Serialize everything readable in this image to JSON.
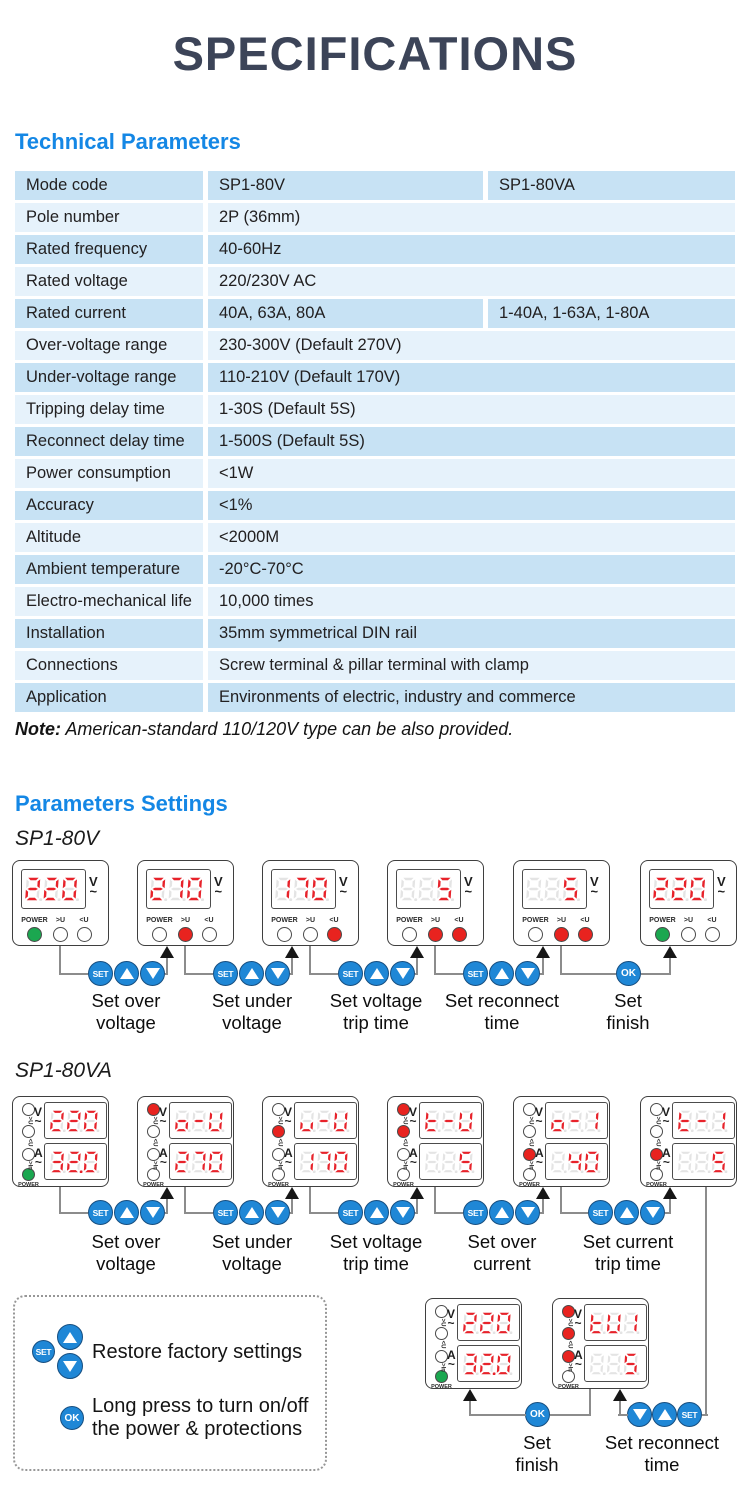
{
  "title": "SPECIFICATIONS",
  "technical": {
    "heading": "Technical Parameters",
    "rows": [
      {
        "label": "Mode code",
        "value": "SP1-80V",
        "value2": "SP1-80VA"
      },
      {
        "label": "Pole number",
        "value": "2P (36mm)"
      },
      {
        "label": "Rated frequency",
        "value": "40-60Hz"
      },
      {
        "label": "Rated voltage",
        "value": "220/230V AC"
      },
      {
        "label": "Rated current",
        "value": "40A, 63A, 80A",
        "value2": "1-40A, 1-63A, 1-80A"
      },
      {
        "label": "Over-voltage range",
        "value": "230-300V (Default 270V)"
      },
      {
        "label": "Under-voltage range",
        "value": "110-210V (Default 170V)"
      },
      {
        "label": "Tripping delay time",
        "value": "1-30S (Default 5S)"
      },
      {
        "label": "Reconnect delay time",
        "value": "1-500S (Default 5S)"
      },
      {
        "label": "Power consumption",
        "value": "<1W"
      },
      {
        "label": "Accuracy",
        "value": "<1%"
      },
      {
        "label": "Altitude",
        "value": "<2000M"
      },
      {
        "label": "Ambient temperature",
        "value": "-20°C-70°C"
      },
      {
        "label": "Electro-mechanical life",
        "value": "10,000 times"
      },
      {
        "label": "Installation",
        "value": "35mm symmetrical DIN rail"
      },
      {
        "label": "Connections",
        "value": "Screw terminal & pillar terminal with clamp"
      },
      {
        "label": "Application",
        "value": "Environments of electric, industry and commerce"
      }
    ],
    "note_label": "Note:",
    "note_text": " American-standard 110/120V type can be also provided."
  },
  "settings": {
    "heading": "Parameters Settings",
    "button_labels": {
      "set": "SET",
      "ok": "OK"
    },
    "sp1_80v": {
      "model": "SP1-80V",
      "indicator_labels": [
        "POWER",
        ">U",
        "<U"
      ],
      "unit": {
        "symbol": "V",
        "ac": "~"
      },
      "devices": [
        {
          "display": "220",
          "leds": {
            "power": "green",
            "over_u": "off",
            "under_u": "off"
          }
        },
        {
          "display": "270",
          "leds": {
            "power": "off",
            "over_u": "red",
            "under_u": "off"
          }
        },
        {
          "display": "170",
          "leds": {
            "power": "off",
            "over_u": "off",
            "under_u": "red"
          }
        },
        {
          "display": "  5",
          "leds": {
            "power": "off",
            "over_u": "red",
            "under_u": "red"
          }
        },
        {
          "display": "  5",
          "leds": {
            "power": "off",
            "over_u": "red",
            "under_u": "red"
          }
        },
        {
          "display": "220",
          "leds": {
            "power": "green",
            "over_u": "off",
            "under_u": "off"
          }
        }
      ],
      "steps": [
        {
          "buttons": [
            "SET",
            "UP",
            "DOWN"
          ],
          "label": "Set over\nvoltage"
        },
        {
          "buttons": [
            "SET",
            "UP",
            "DOWN"
          ],
          "label": "Set under\nvoltage"
        },
        {
          "buttons": [
            "SET",
            "UP",
            "DOWN"
          ],
          "label": "Set voltage\ntrip time"
        },
        {
          "buttons": [
            "SET",
            "UP",
            "DOWN"
          ],
          "label": "Set reconnect\ntime"
        },
        {
          "buttons": [
            "OK"
          ],
          "label": "Set\nfinish"
        }
      ]
    },
    "sp1_80va": {
      "model": "SP1-80VA",
      "indicator_labels": [
        ">U",
        "<U",
        ">In",
        "POWER"
      ],
      "units": {
        "volt": "V",
        "amp": "A",
        "ac": "~"
      },
      "devices": [
        {
          "v": "220",
          "a": "32.0",
          "leds": {
            "over_u": "off",
            "under_u": "off",
            "over_i": "off",
            "power": "green"
          }
        },
        {
          "v": "o-U",
          "a": "270",
          "leds": {
            "over_u": "red",
            "under_u": "off",
            "over_i": "off",
            "power": "off"
          }
        },
        {
          "v": "u-U",
          "a": "170",
          "leds": {
            "over_u": "off",
            "under_u": "red",
            "over_i": "off",
            "power": "off"
          }
        },
        {
          "v": "t-U",
          "a": "  5",
          "leds": {
            "over_u": "red",
            "under_u": "red",
            "over_i": "off",
            "power": "off"
          }
        },
        {
          "v": "o-1",
          "a": " 40",
          "leds": {
            "over_u": "off",
            "under_u": "off",
            "over_i": "red",
            "power": "off"
          }
        },
        {
          "v": "t-1",
          "a": "  5",
          "leds": {
            "over_u": "off",
            "under_u": "off",
            "over_i": "red",
            "power": "off"
          }
        }
      ],
      "steps": [
        {
          "buttons": [
            "SET",
            "UP",
            "DOWN"
          ],
          "label": "Set over\nvoltage"
        },
        {
          "buttons": [
            "SET",
            "UP",
            "DOWN"
          ],
          "label": "Set under\nvoltage"
        },
        {
          "buttons": [
            "SET",
            "UP",
            "DOWN"
          ],
          "label": "Set voltage\ntrip time"
        },
        {
          "buttons": [
            "SET",
            "UP",
            "DOWN"
          ],
          "label": "Set over\ncurrent"
        },
        {
          "buttons": [
            "SET",
            "UP",
            "DOWN"
          ],
          "label": "Set current\ntrip time"
        }
      ]
    },
    "finish_row": {
      "devices": [
        {
          "v": "220",
          "a": "32.0",
          "leds": {
            "over_u": "off",
            "under_u": "off",
            "over_i": "off",
            "power": "green"
          }
        },
        {
          "v": "tU1",
          "a": "  5",
          "leds": {
            "over_u": "red",
            "under_u": "red",
            "over_i": "red",
            "power": "off"
          }
        }
      ],
      "steps": [
        {
          "buttons": [
            "OK"
          ],
          "label": "Set\nfinish"
        },
        {
          "buttons": [
            "DOWN",
            "UP",
            "SET"
          ],
          "label": "Set reconnect\ntime"
        }
      ]
    },
    "legend": [
      {
        "buttons": [
          "SET",
          "UP",
          "DOWN"
        ],
        "text": "Restore factory settings"
      },
      {
        "buttons": [
          "OK"
        ],
        "text": "Long press to turn on/off\nthe power & protections"
      }
    ]
  },
  "colors": {
    "accent_blue": "#1487e5",
    "title": "#3c4458",
    "table_row_dark": "#c7e2f4",
    "table_row_light": "#e6f2fb",
    "digit_red": "#e8222a",
    "digit_ghost": "#e4e4e4",
    "led_green": "#1ba750",
    "led_red": "#e8231f",
    "led_off": "#ffffff",
    "button_blue": "#1f87d6",
    "wire_gray": "#8c8c8c"
  }
}
